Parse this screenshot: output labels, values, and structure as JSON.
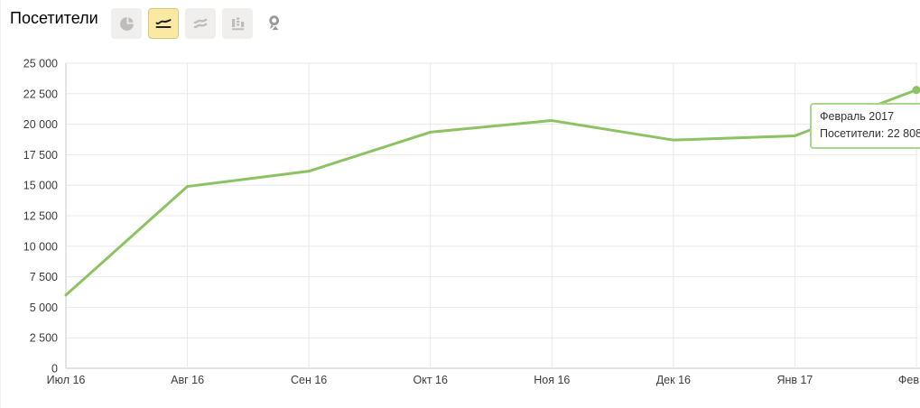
{
  "header": {
    "title": "Посетители",
    "toolbar": {
      "items": [
        {
          "id": "pie",
          "icon": "pie-chart-icon",
          "selected": false
        },
        {
          "id": "line",
          "icon": "line-chart-icon",
          "selected": true
        },
        {
          "id": "stacked",
          "icon": "stacked-area-icon",
          "selected": false
        },
        {
          "id": "columns",
          "icon": "column-chart-icon",
          "selected": false
        },
        {
          "id": "map",
          "icon": "map-pin-icon",
          "selected": false
        }
      ],
      "selected_bg": "#fae9a2",
      "selected_border": "#dcc67e"
    }
  },
  "tooltip": {
    "title": "Февраль 2017",
    "text": "Посетители: 22 808"
  },
  "chart_data": {
    "type": "line",
    "title": "Посетители",
    "x_labels": [
      "Июл 16",
      "Авг 16",
      "Сен 16",
      "Окт 16",
      "Ноя 16",
      "Дек 16",
      "Янв 17",
      "Фев"
    ],
    "series": [
      {
        "name": "Посетители",
        "values": [
          6000,
          14900,
          16150,
          19350,
          20300,
          18700,
          19050,
          22808
        ]
      }
    ],
    "highlight": {
      "index": 7,
      "period": "Февраль 2017",
      "value": 22808,
      "value_display": "22 808"
    },
    "ylim": [
      0,
      25000
    ],
    "y_tick_step": 2500,
    "y_tick_labels": [
      "0",
      "2 500",
      "5 000",
      "7 500",
      "10 000",
      "12 500",
      "15 000",
      "17 500",
      "20 000",
      "22 500",
      "25 000"
    ],
    "grid": true,
    "legend_position": "none",
    "line_color": "#8dc263",
    "grid_color": "#e8e8e8",
    "axis_color": "#c9c9c9",
    "label_color": "#3c3c3c"
  }
}
